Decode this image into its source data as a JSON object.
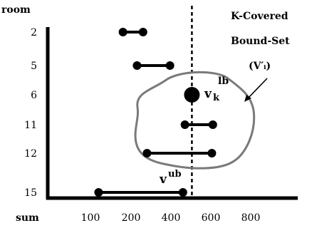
{
  "axis": {
    "y_title": "room",
    "x_title": "sum",
    "y_ticks": [
      "2",
      "5",
      "6",
      "11",
      "12",
      "15"
    ],
    "x_ticks": [
      "100",
      "200",
      "400",
      "600",
      "800"
    ]
  },
  "intervals": [
    {
      "room": "2",
      "start": 180,
      "end": 260
    },
    {
      "room": "5",
      "start": 230,
      "end": 395
    },
    {
      "room": "11",
      "start": 470,
      "end": 610
    },
    {
      "room": "12",
      "start": 280,
      "end": 605
    },
    {
      "room": "15",
      "start": 120,
      "end": 460
    }
  ],
  "point": {
    "room": "6",
    "value": 505
  },
  "threshold": 505,
  "annotations": {
    "vk_base": "v",
    "vk_sub": "k",
    "vk_sup": "lb",
    "vub_base": "v",
    "vub_sup": "ub",
    "set_title_line1": "K-Covered",
    "set_title_line2": "Bound-Set",
    "set_title_line3": "(V′ᵢ)"
  }
}
